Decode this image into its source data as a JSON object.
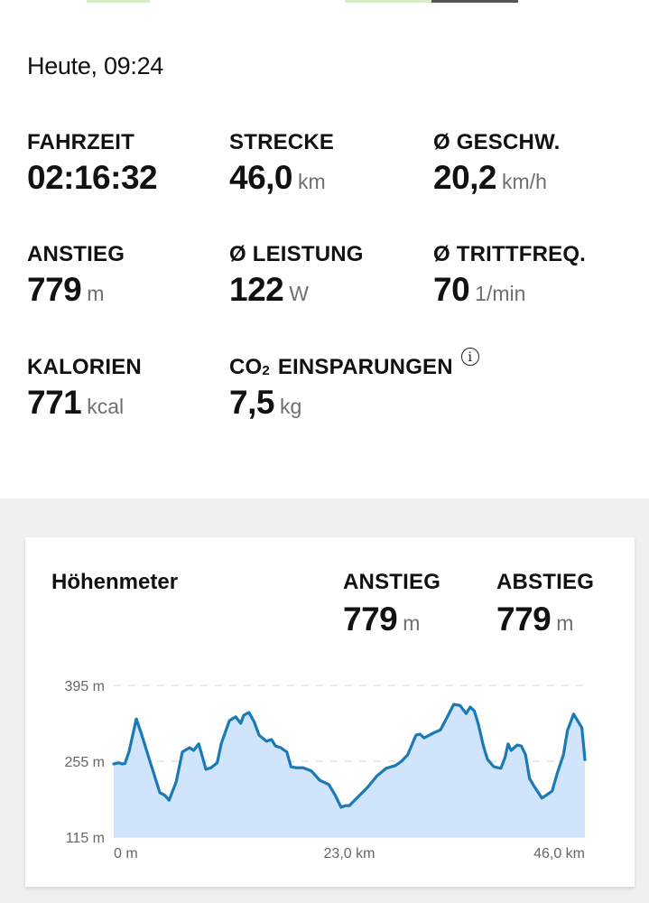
{
  "header": {
    "date_time": "Heute, 09:24"
  },
  "stats": [
    {
      "id": "fahrzeit",
      "label": "FAHRZEIT",
      "value": "02:16:32",
      "unit": ""
    },
    {
      "id": "strecke",
      "label": "STRECKE",
      "value": "46,0",
      "unit": "km"
    },
    {
      "id": "geschw",
      "label": "Ø GESCHW.",
      "value": "20,2",
      "unit": "km/h"
    },
    {
      "id": "anstieg",
      "label": "ANSTIEG",
      "value": "779",
      "unit": "m"
    },
    {
      "id": "leistung",
      "label": "Ø LEISTUNG",
      "value": "122",
      "unit": "W"
    },
    {
      "id": "trittfreq",
      "label": "Ø TRITTFREQ.",
      "value": "70",
      "unit": "1/min"
    },
    {
      "id": "kalorien",
      "label": "KALORIEN",
      "value": "771",
      "unit": "kcal"
    },
    {
      "id": "co2",
      "label_prefix": "CO",
      "label_sub": "2",
      "label_suffix": " EINSPARUNGEN",
      "value": "7,5",
      "unit": "kg",
      "icon": "info-icon"
    }
  ],
  "elevation_card": {
    "title": "Höhenmeter",
    "ascent": {
      "label": "ANSTIEG",
      "value": "779",
      "unit": "m"
    },
    "descent": {
      "label": "ABSTIEG",
      "value": "779",
      "unit": "m"
    }
  },
  "colors": {
    "line": "#1a7ab5",
    "fill": "#d0e4fb",
    "section_bg": "#eff0f2",
    "unit_text": "#6f6f6f"
  },
  "chart_data": {
    "type": "area",
    "title": "Höhenmeter",
    "xlabel": "",
    "ylabel": "",
    "y_ticks": [
      "395 m",
      "255 m",
      "115 m"
    ],
    "x_ticks": [
      "0 m",
      "23,0 km",
      "46,0 km"
    ],
    "ylim": [
      115,
      395
    ],
    "xlim": [
      0,
      46.0
    ],
    "grid": "horizontal dashed",
    "x_km": [
      0.0,
      0.5,
      0.8,
      1.1,
      1.5,
      2.2,
      2.7,
      3.4,
      4.5,
      5.0,
      5.4,
      6.1,
      6.7,
      7.4,
      7.8,
      8.3,
      8.6,
      9.0,
      9.5,
      10.1,
      10.5,
      11.3,
      11.9,
      12.4,
      12.7,
      13.2,
      13.7,
      14.2,
      14.9,
      15.4,
      15.8,
      16.3,
      16.9,
      17.3,
      17.8,
      18.5,
      19.3,
      20.1,
      21.0,
      21.6,
      22.2,
      22.6,
      23.0,
      23.9,
      24.8,
      25.7,
      26.6,
      27.5,
      28.1,
      28.7,
      29.5,
      29.9,
      30.3,
      31.2,
      31.9,
      32.6,
      33.2,
      33.8,
      34.4,
      34.8,
      35.2,
      35.6,
      36.1,
      36.5,
      37.1,
      37.5,
      37.8,
      38.2,
      38.5,
      38.8,
      39.4,
      39.8,
      40.2,
      40.6,
      41.1,
      41.8,
      42.2,
      42.8,
      43.3,
      43.9,
      44.3,
      44.9,
      45.7,
      46.0
    ],
    "elevation_m": [
      250,
      252,
      250,
      251,
      273,
      333,
      306,
      263,
      197,
      192,
      183,
      217,
      272,
      280,
      275,
      287,
      267,
      240,
      243,
      252,
      288,
      330,
      337,
      325,
      340,
      345,
      328,
      303,
      292,
      295,
      283,
      280,
      272,
      245,
      243,
      243,
      237,
      220,
      212,
      193,
      170,
      173,
      173,
      190,
      207,
      228,
      242,
      247,
      255,
      267,
      303,
      305,
      298,
      307,
      313,
      338,
      360,
      358,
      343,
      355,
      348,
      323,
      282,
      258,
      245,
      243,
      242,
      262,
      287,
      275,
      285,
      283,
      267,
      223,
      207,
      187,
      192,
      200,
      233,
      267,
      312,
      342,
      317,
      258
    ]
  }
}
